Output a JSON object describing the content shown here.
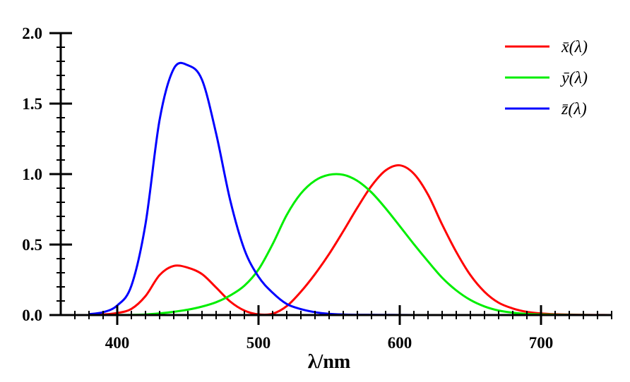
{
  "chart_data": {
    "type": "line",
    "title": "",
    "xlabel": "λ/nm",
    "ylabel": "",
    "xlim": [
      360,
      750
    ],
    "ylim": [
      0,
      2.0
    ],
    "xticks": [
      400,
      500,
      600,
      700
    ],
    "xtick_labels": [
      "400",
      "500",
      "600",
      "700"
    ],
    "x_minor_step": 10,
    "yticks": [
      0,
      0.5,
      1.0,
      1.5,
      2.0
    ],
    "ytick_labels": [
      "0.0",
      "0.5",
      "1.0",
      "1.5",
      "2.0"
    ],
    "y_minor_step": 0.1,
    "grid": false,
    "legend_position": "top-right",
    "x": [
      380,
      390,
      400,
      410,
      420,
      430,
      440,
      450,
      460,
      470,
      480,
      490,
      500,
      510,
      520,
      530,
      540,
      550,
      560,
      570,
      580,
      590,
      600,
      610,
      620,
      630,
      640,
      650,
      660,
      670,
      680,
      690,
      700,
      710,
      720,
      730,
      740,
      750
    ],
    "series": [
      {
        "name": "x̄(λ)",
        "color": "#ff0000",
        "values": [
          0.0014,
          0.0042,
          0.0143,
          0.0435,
          0.1344,
          0.2839,
          0.3483,
          0.3362,
          0.2908,
          0.1954,
          0.0956,
          0.032,
          0.0049,
          0.0093,
          0.0633,
          0.1655,
          0.2904,
          0.4334,
          0.5945,
          0.7621,
          0.9163,
          1.0263,
          1.0622,
          1.0026,
          0.8544,
          0.6424,
          0.4479,
          0.2835,
          0.1649,
          0.0874,
          0.0468,
          0.0227,
          0.0114,
          0.0058,
          0.0029,
          0.0014,
          0.0007,
          0.0003
        ]
      },
      {
        "name": "ȳ(λ)",
        "color": "#00ee00",
        "values": [
          0.0,
          0.0001,
          0.0004,
          0.0012,
          0.004,
          0.0116,
          0.023,
          0.038,
          0.06,
          0.091,
          0.139,
          0.208,
          0.323,
          0.503,
          0.71,
          0.862,
          0.954,
          0.995,
          0.995,
          0.952,
          0.87,
          0.757,
          0.631,
          0.503,
          0.381,
          0.265,
          0.175,
          0.107,
          0.061,
          0.032,
          0.017,
          0.0082,
          0.0041,
          0.0021,
          0.001,
          0.0005,
          0.0002,
          0.0001
        ]
      },
      {
        "name": "z̄(λ)",
        "color": "#0000ff",
        "values": [
          0.0065,
          0.0201,
          0.0679,
          0.2074,
          0.6456,
          1.3856,
          1.7471,
          1.7721,
          1.6692,
          1.2876,
          0.813,
          0.4652,
          0.272,
          0.1582,
          0.0782,
          0.0422,
          0.0203,
          0.0087,
          0.0039,
          0.0021,
          0.0017,
          0.0011,
          0.0008,
          0.0003,
          0.0002,
          0,
          0,
          0,
          0,
          0,
          0,
          0,
          0,
          0,
          0,
          0,
          0,
          0
        ]
      }
    ]
  }
}
